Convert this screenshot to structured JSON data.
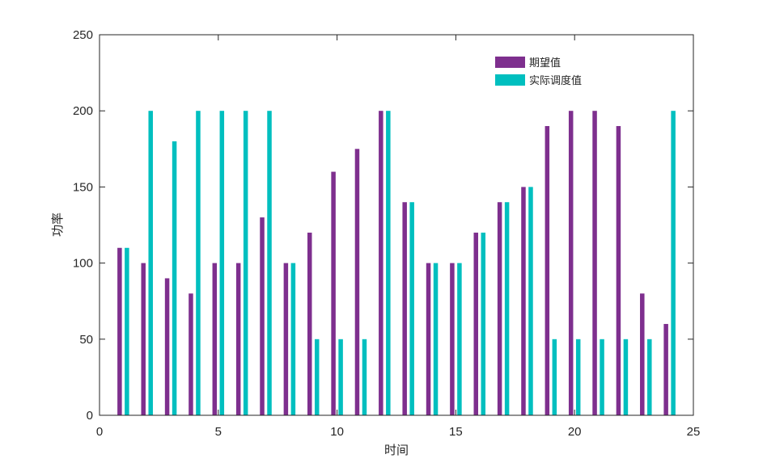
{
  "chart_data": {
    "type": "bar",
    "xlabel": "时间",
    "ylabel": "功率",
    "xlim": [
      0,
      25
    ],
    "ylim": [
      0,
      250
    ],
    "xticks": [
      0,
      5,
      10,
      15,
      20,
      25
    ],
    "yticks": [
      0,
      50,
      100,
      150,
      200,
      250
    ],
    "grid": false,
    "legend_position": "top-right",
    "x": [
      1,
      2,
      3,
      4,
      5,
      6,
      7,
      8,
      9,
      10,
      11,
      12,
      13,
      14,
      15,
      16,
      17,
      18,
      19,
      20,
      21,
      22,
      23,
      24
    ],
    "series": [
      {
        "name": "期望值",
        "color": "#7e2f8e",
        "values": [
          110,
          100,
          90,
          80,
          100,
          100,
          130,
          100,
          120,
          160,
          175,
          200,
          140,
          100,
          100,
          120,
          140,
          150,
          190,
          200,
          200,
          190,
          80,
          60
        ]
      },
      {
        "name": "实际调度值",
        "color": "#00bfbf",
        "values": [
          110,
          200,
          180,
          200,
          200,
          200,
          200,
          100,
          50,
          50,
          50,
          200,
          140,
          100,
          100,
          120,
          140,
          150,
          50,
          50,
          50,
          50,
          50,
          200
        ]
      }
    ]
  }
}
